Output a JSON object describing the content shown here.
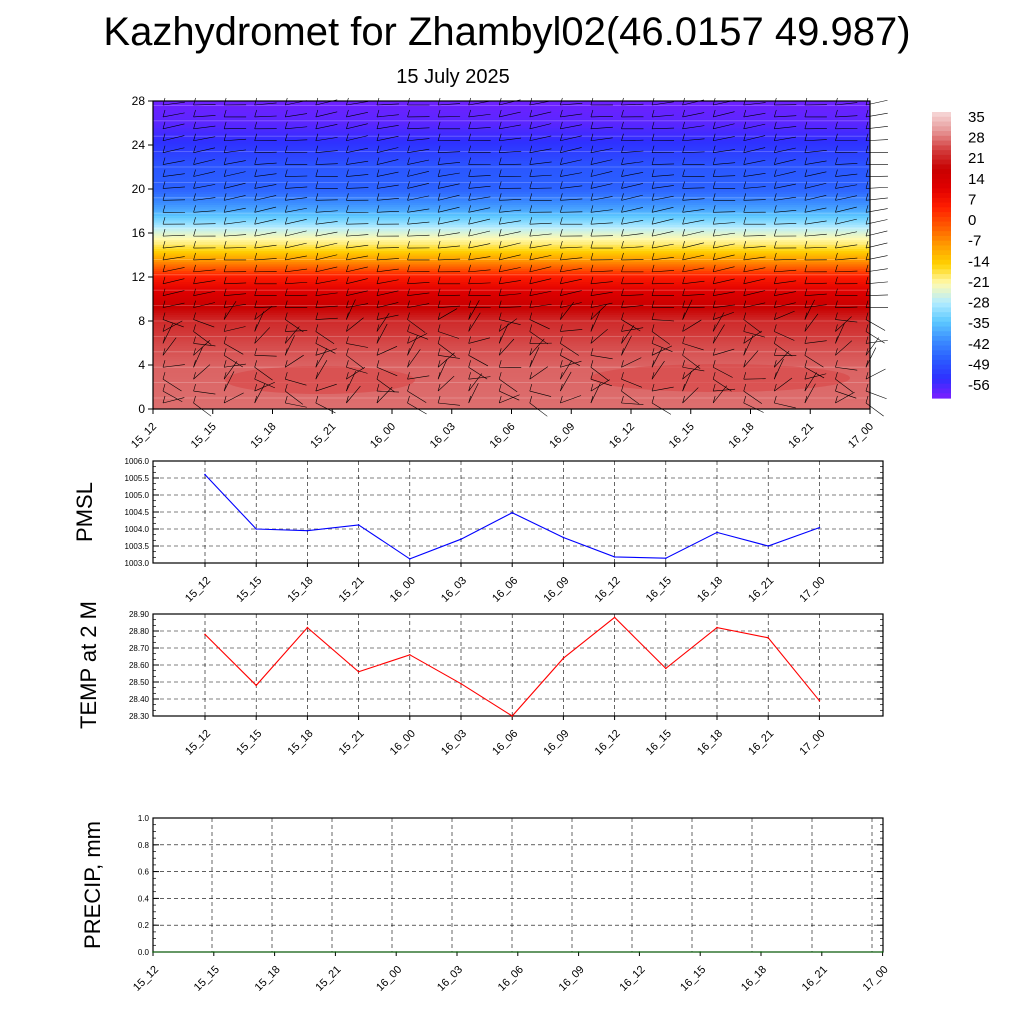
{
  "title": "Kazhydromet for Zhambyl02(46.0157 49.987)",
  "subtitle": "15 July 2025",
  "colors": {
    "pmsl_line": "#0000ff",
    "temp_line": "#ff0000",
    "precip_line": "#006400",
    "colorbar": [
      "#7a1fff",
      "#2f2fff",
      "#2a5cff",
      "#3b8cff",
      "#5cc8ff",
      "#b4ecff",
      "#fffab0",
      "#ffd200",
      "#ff9c00",
      "#ff5a00",
      "#ff1e00",
      "#e00000",
      "#c80000",
      "#d23c3c",
      "#e69696",
      "#f7dada"
    ]
  },
  "chart_data": [
    {
      "type": "heatmap",
      "title": "",
      "xlabel": "",
      "ylabel": "",
      "x_ticks": [
        "15_12",
        "15_15",
        "15_18",
        "15_21",
        "16_00",
        "16_03",
        "16_06",
        "16_09",
        "16_12",
        "16_15",
        "16_18",
        "16_21",
        "17_00"
      ],
      "y_ticks": [
        "0",
        "4",
        "8",
        "12",
        "16",
        "20",
        "24",
        "28"
      ],
      "ylim": [
        0,
        28
      ],
      "colorbar_labels": [
        "35",
        "28",
        "21",
        "14",
        "7",
        "0",
        "-7",
        "-14",
        "-21",
        "-28",
        "-35",
        "-42",
        "-49",
        "-56"
      ],
      "colorbar_range": [
        -63,
        42
      ],
      "bands_by_height": [
        {
          "y": 0,
          "value": 32
        },
        {
          "y": 4,
          "value": 31
        },
        {
          "y": 6,
          "value": 29
        },
        {
          "y": 8,
          "value": 26
        },
        {
          "y": 10,
          "value": 18
        },
        {
          "y": 12,
          "value": 8
        },
        {
          "y": 13.5,
          "value": -6
        },
        {
          "y": 14.5,
          "value": -15
        },
        {
          "y": 16,
          "value": -24
        },
        {
          "y": 18,
          "value": -38
        },
        {
          "y": 20,
          "value": -48
        },
        {
          "y": 22,
          "value": -50
        },
        {
          "y": 24,
          "value": -55
        },
        {
          "y": 26,
          "value": -60
        },
        {
          "y": 28,
          "value": -62
        }
      ],
      "wind_barbs": true
    },
    {
      "type": "line",
      "ylabel": "PMSL",
      "categories": [
        "15_12",
        "15_15",
        "15_18",
        "15_21",
        "16_00",
        "16_03",
        "16_06",
        "16_09",
        "16_12",
        "16_15",
        "16_18",
        "16_21",
        "17_00"
      ],
      "y_tick_labels": [
        "1006.0",
        "1005.5",
        "1005.0",
        "1004.5",
        "1004.0",
        "1003.5",
        "1003.0"
      ],
      "ylim": [
        1003.0,
        1006.0
      ],
      "grid": true,
      "series": [
        {
          "values": [
            1005.6,
            1004.0,
            1003.95,
            1004.12,
            1003.12,
            1003.7,
            1004.48,
            1003.75,
            1003.18,
            1003.14,
            1003.9,
            1003.5,
            1004.04
          ]
        }
      ]
    },
    {
      "type": "line",
      "ylabel": "TEMP at 2 M",
      "categories": [
        "15_12",
        "15_15",
        "15_18",
        "15_21",
        "16_00",
        "16_03",
        "16_06",
        "16_09",
        "16_12",
        "16_15",
        "16_18",
        "16_21",
        "17_00"
      ],
      "y_tick_labels": [
        "28.90",
        "28.80",
        "28.70",
        "28.60",
        "28.50",
        "28.40",
        "28.30"
      ],
      "ylim": [
        28.3,
        28.9
      ],
      "grid": true,
      "series": [
        {
          "values": [
            28.78,
            28.48,
            28.82,
            28.56,
            28.66,
            28.49,
            28.3,
            28.64,
            28.88,
            28.58,
            28.82,
            28.76,
            28.39
          ]
        }
      ]
    },
    {
      "type": "line",
      "ylabel": "PRECIP, mm",
      "categories": [
        "15_12",
        "15_15",
        "15_18",
        "15_21",
        "16_00",
        "16_03",
        "16_06",
        "16_09",
        "16_12",
        "16_15",
        "16_18",
        "16_21",
        "17_00"
      ],
      "y_tick_labels": [
        "1.0",
        "0.8",
        "0.6",
        "0.4",
        "0.2",
        "0.0"
      ],
      "ylim": [
        0.0,
        1.0
      ],
      "grid": true,
      "series": [
        {
          "values": [
            0,
            0,
            0,
            0,
            0,
            0,
            0,
            0,
            0,
            0,
            0,
            0,
            0
          ]
        }
      ]
    }
  ]
}
